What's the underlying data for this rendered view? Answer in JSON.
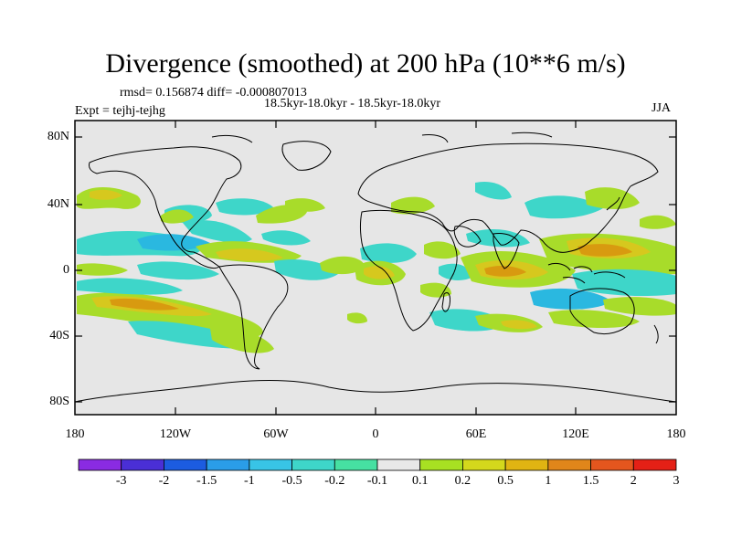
{
  "title": "Divergence (smoothed) at 200 hPa (10**6 m/s)",
  "stats": "rmsd= 0.156874 diff= -0.000807013",
  "experiment": "Expt = tejhj-tejhg",
  "period": "18.5kyr-18.0kyr - 18.5kyr-18.0kyr",
  "season": "JJA",
  "lat_labels": [
    "80N",
    "40N",
    "0",
    "40S",
    "80S"
  ],
  "lon_labels": [
    "180",
    "120W",
    "60W",
    "0",
    "60E",
    "120E",
    "180"
  ],
  "colorbar": {
    "labels": [
      "-3",
      "-2",
      "-1.5",
      "-1",
      "-0.5",
      "-0.2",
      "-0.1",
      "0.1",
      "0.2",
      "0.5",
      "1",
      "1.5",
      "2",
      "3"
    ],
    "colors": [
      "#8a2be2",
      "#4a2fd6",
      "#1c5ce0",
      "#2a9de8",
      "#38c4e6",
      "#3ed6c9",
      "#46e0a2",
      "#e8e8e8",
      "#a8e022",
      "#d4d81c",
      "#e0b412",
      "#e0861a",
      "#e4561e",
      "#e42016"
    ]
  },
  "colors": {
    "ocean": "#e6e6e6",
    "neg_weak": "#3ed6c9",
    "neg_mid": "#2ab8e0",
    "pos_weak": "#a8dc2a",
    "pos_mid": "#d6c81e",
    "pos_strong": "#d89a10"
  }
}
